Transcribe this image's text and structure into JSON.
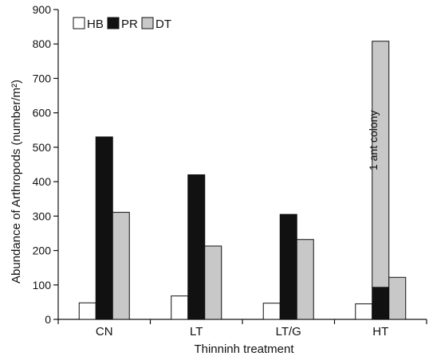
{
  "chart_data": {
    "type": "bar",
    "title": "",
    "xlabel": "Thinninh treatment",
    "ylabel": "Abundance of Arthropods (number/m²)",
    "ylim": [
      0,
      900
    ],
    "yticks": [
      0,
      100,
      200,
      300,
      400,
      500,
      600,
      700,
      800,
      900
    ],
    "categories": [
      "CN",
      "LT",
      "LT/G",
      "HT"
    ],
    "series": [
      {
        "name": "HB",
        "color": "#ffffff",
        "values": [
          48,
          68,
          47,
          45
        ]
      },
      {
        "name": "PR",
        "color": "#111111",
        "values": [
          530,
          420,
          305,
          93
        ]
      },
      {
        "name": "DT",
        "color": "#c8c8c8",
        "values": [
          311,
          213,
          232,
          122
        ]
      }
    ],
    "stacked_segment": {
      "category": "HT",
      "series": "DT",
      "bottom": 93,
      "top": 808
    },
    "annotation": {
      "text": "1 ant colony",
      "category": "HT"
    },
    "legend": {
      "position": "top-left",
      "entries": [
        "HB",
        "PR",
        "DT"
      ]
    },
    "grid": false
  }
}
